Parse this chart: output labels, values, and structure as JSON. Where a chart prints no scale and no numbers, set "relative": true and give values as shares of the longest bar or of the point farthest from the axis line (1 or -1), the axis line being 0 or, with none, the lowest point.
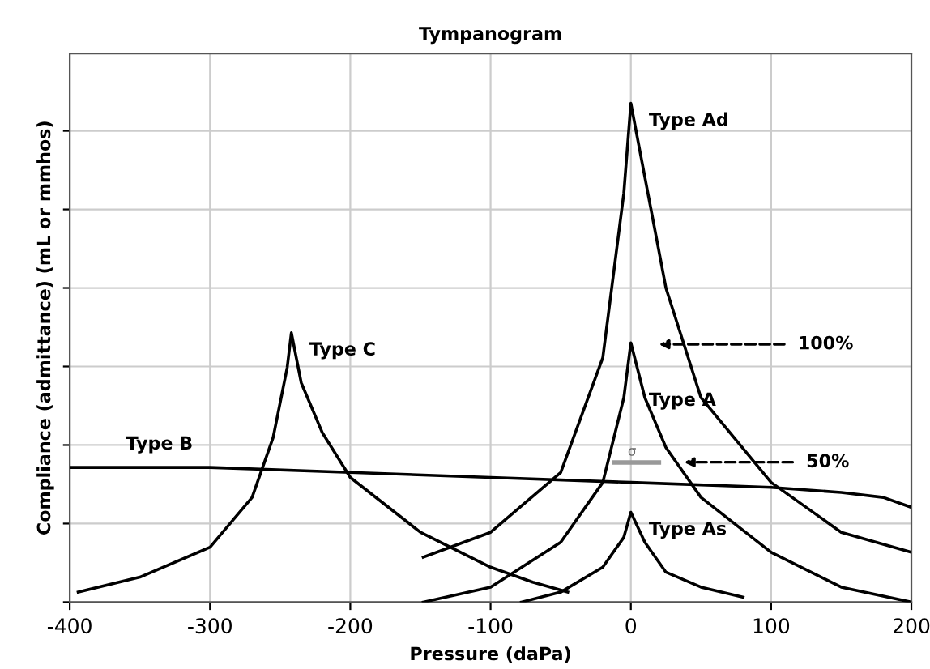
{
  "chart_data": {
    "type": "line",
    "title": "Tympanogram",
    "xlabel": "Pressure (daPa)",
    "ylabel": "Compliance (admittance) (mL or mmhos)",
    "relative": true,
    "xlim": [
      -400,
      200
    ],
    "xticks": [
      -400,
      -300,
      -200,
      -100,
      0,
      100,
      200
    ],
    "grid": true,
    "marker": "none",
    "line_style": "solid",
    "series": [
      {
        "name": "Type Ad",
        "color": "#000000",
        "x": [
          -148,
          -100,
          -50,
          -20,
          -5,
          0,
          25,
          50,
          100,
          150,
          200
        ],
        "values": [
          0.09,
          0.14,
          0.26,
          0.49,
          0.82,
          1,
          0.63,
          0.41,
          0.24,
          0.14,
          0.1
        ]
      },
      {
        "name": "Type A",
        "color": "#000000",
        "x": [
          -148,
          -100,
          -50,
          -20,
          -5,
          0,
          10,
          25,
          50,
          100,
          150,
          200
        ],
        "values": [
          0,
          0.03,
          0.12,
          0.24,
          0.41,
          0.52,
          0.41,
          0.31,
          0.21,
          0.1,
          0.03,
          0
        ]
      },
      {
        "name": "Type As",
        "color": "#000000",
        "x": [
          -78,
          -50,
          -20,
          -5,
          0,
          10,
          25,
          50,
          80
        ],
        "values": [
          0,
          0.02,
          0.07,
          0.13,
          0.18,
          0.12,
          0.06,
          0.03,
          0.01
        ]
      },
      {
        "name": "Type C",
        "color": "#000000",
        "x": [
          -394,
          -350,
          -300,
          -270,
          -255,
          -245,
          -242,
          -235,
          -220,
          -200,
          -150,
          -100,
          -70,
          -45
        ],
        "values": [
          0.02,
          0.05,
          0.11,
          0.21,
          0.33,
          0.47,
          0.54,
          0.44,
          0.34,
          0.25,
          0.14,
          0.07,
          0.04,
          0.02
        ]
      },
      {
        "name": "Type B",
        "color": "#000000",
        "x": [
          -400,
          -300,
          -200,
          -100,
          0,
          100,
          150,
          180,
          200
        ],
        "values": [
          0.27,
          0.27,
          0.26,
          0.25,
          0.24,
          0.23,
          0.22,
          0.21,
          0.19
        ]
      },
      {
        "color": "#999999",
        "x": [
          -12,
          20
        ],
        "values": [
          0.28,
          0.28
        ]
      }
    ],
    "annotations": [
      "100%",
      "50%",
      "σ"
    ]
  }
}
